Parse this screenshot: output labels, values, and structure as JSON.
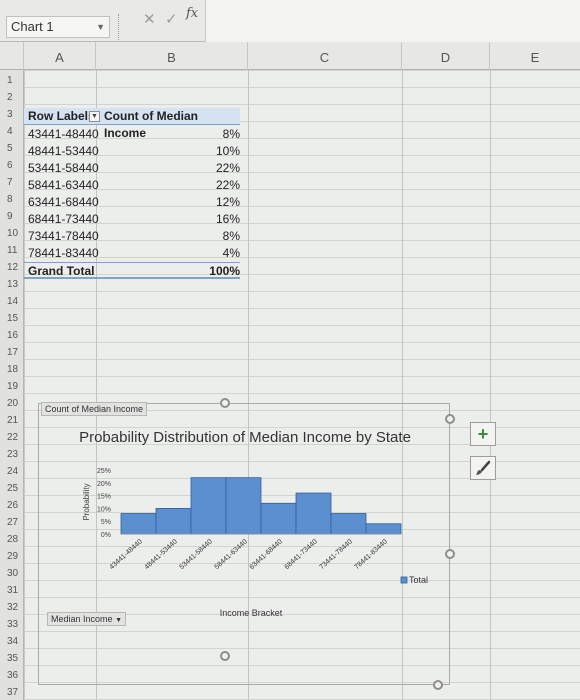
{
  "formula_bar": {
    "name_box": "Chart 1",
    "icons": [
      "cancel-icon",
      "enter-icon",
      "function-icon"
    ],
    "icon_glyphs": [
      "✕",
      "✓",
      "fx"
    ]
  },
  "columns": [
    "A",
    "B",
    "C",
    "D",
    "E"
  ],
  "rows": [
    "1",
    "2",
    "3",
    "4",
    "5",
    "6",
    "7",
    "8",
    "9",
    "10",
    "11",
    "12",
    "13",
    "14",
    "15",
    "16",
    "17",
    "18",
    "19",
    "20",
    "21",
    "22",
    "23",
    "24",
    "25",
    "26",
    "27",
    "28",
    "29",
    "30",
    "31",
    "32",
    "33",
    "34",
    "35",
    "36",
    "37"
  ],
  "pivot": {
    "header_row_labels": "Row Labels",
    "header_value": "Count of Median Income",
    "rows": [
      {
        "label": "43441-48440",
        "value": "8%"
      },
      {
        "label": "48441-53440",
        "value": "10%"
      },
      {
        "label": "53441-58440",
        "value": "22%"
      },
      {
        "label": "58441-63440",
        "value": "22%"
      },
      {
        "label": "63441-68440",
        "value": "12%"
      },
      {
        "label": "68441-73440",
        "value": "16%"
      },
      {
        "label": "73441-78440",
        "value": "8%"
      },
      {
        "label": "78441-83440",
        "value": "4%"
      }
    ],
    "total_label": "Grand Total",
    "total_value": "100%"
  },
  "chart": {
    "value_field_button": "Count of Median Income",
    "axis_field_button": "Median Income",
    "add_element_glyph": "+",
    "colors": {
      "bar": "#5b8fd0",
      "bar_edge": "#2f5f9e"
    }
  },
  "chart_data": {
    "type": "bar",
    "title": "Probability Distribution of Median Income by State",
    "xlabel": "Income Bracket",
    "ylabel": "Probability",
    "categories": [
      "43441-48440",
      "48441-53440",
      "53441-58440",
      "58441-63440",
      "63441-68440",
      "68441-73440",
      "73441-78440",
      "78441-83440"
    ],
    "series": [
      {
        "name": "Total",
        "values": [
          0.08,
          0.1,
          0.22,
          0.22,
          0.12,
          0.16,
          0.08,
          0.04
        ]
      }
    ],
    "yticks": [
      "0%",
      "5%",
      "10%",
      "15%",
      "20%",
      "25%"
    ],
    "ylim": [
      0,
      0.25
    ],
    "grid": false,
    "legend": "right"
  }
}
